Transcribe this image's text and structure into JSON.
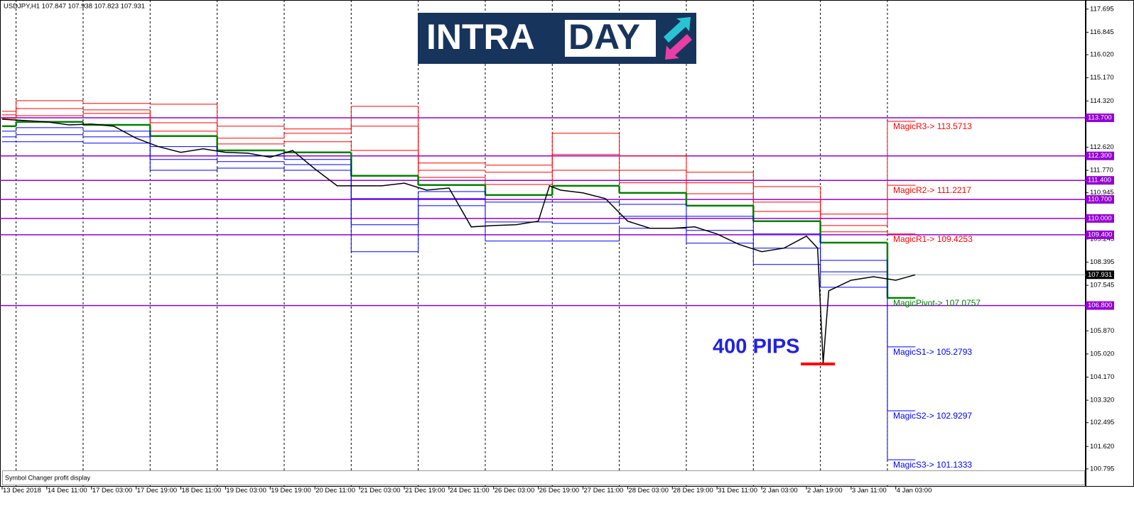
{
  "chart_data": {
    "type": "line",
    "title": "USDJPY,H1  107.847 107.938 107.823 107.931",
    "xlim": [
      -0.76,
      388
    ],
    "ylim": [
      100.14,
      118.03
    ],
    "xticks": [
      {
        "value": 0,
        "label": "13 Dec 2018"
      },
      {
        "value": 16,
        "label": "14 Dec 11:00"
      },
      {
        "value": 32,
        "label": "17 Dec 03:00"
      },
      {
        "value": 48,
        "label": "17 Dec 19:00"
      },
      {
        "value": 64,
        "label": "18 Dec 11:00"
      },
      {
        "value": 80,
        "label": "19 Dec 03:00"
      },
      {
        "value": 96,
        "label": "19 Dec 19:00"
      },
      {
        "value": 112,
        "label": "20 Dec 11:00"
      },
      {
        "value": 128,
        "label": "21 Dec 03:00"
      },
      {
        "value": 144,
        "label": "21 Dec 19:00"
      },
      {
        "value": 160,
        "label": "24 Dec 11:00"
      },
      {
        "value": 176,
        "label": "26 Dec 03:00"
      },
      {
        "value": 192,
        "label": "26 Dec 19:00"
      },
      {
        "value": 208,
        "label": "27 Dec 11:00"
      },
      {
        "value": 224,
        "label": "28 Dec 03:00"
      },
      {
        "value": 240,
        "label": "28 Dec 19:00"
      },
      {
        "value": 256,
        "label": "31 Dec 11:00"
      },
      {
        "value": 272,
        "label": "2 Jan 03:00"
      },
      {
        "value": 288,
        "label": "2 Jan 19:00"
      },
      {
        "value": 304,
        "label": "3 Jan 11:00"
      },
      {
        "value": 320,
        "label": "4 Jan 03:00"
      }
    ],
    "yticks": [
      117.695,
      116.845,
      {
        "value": 116.02,
        "label": "116.020"
      },
      {
        "value": 115.17,
        "label": "115.170"
      },
      {
        "value": 114.32,
        "label": "114.320"
      },
      {
        "value": 112.62,
        "label": "112.620"
      },
      {
        "value": 111.77,
        "label": "111.770"
      },
      110.945,
      109.245,
      108.395,
      107.545,
      {
        "value": 105.87,
        "label": "105.870"
      },
      {
        "value": 105.02,
        "label": "105.020"
      },
      {
        "value": 104.17,
        "label": "104.170"
      },
      {
        "value": 103.32,
        "label": "103.320"
      },
      102.495,
      {
        "value": 101.62,
        "label": "101.620"
      },
      100.795
    ],
    "series": [
      {
        "color": "#000000",
        "x": [
          0,
          8,
          16,
          24,
          32,
          40,
          48,
          56,
          64,
          72,
          80,
          88,
          96,
          104,
          112,
          120,
          128,
          136,
          144,
          152,
          160,
          168,
          176,
          184,
          192,
          196,
          200,
          208,
          216,
          224,
          232,
          240,
          248,
          256,
          264,
          272,
          280,
          288,
          292,
          294,
          296,
          304,
          312,
          320,
          327
        ],
        "values": [
          113.65,
          113.6,
          113.55,
          113.44,
          113.47,
          113.39,
          112.95,
          112.64,
          112.43,
          112.56,
          112.43,
          112.4,
          112.25,
          112.5,
          111.82,
          111.2,
          111.2,
          111.2,
          111.3,
          111.04,
          111.12,
          109.69,
          109.74,
          109.77,
          109.9,
          111.2,
          111.04,
          110.94,
          110.73,
          109.9,
          109.64,
          109.64,
          109.69,
          109.43,
          109.04,
          108.78,
          108.91,
          109.35,
          108.91,
          104.68,
          107.34,
          107.73,
          107.86,
          107.73,
          107.931
        ]
      }
    ],
    "step_x": [
      0,
      5,
      29,
      53,
      77,
      101,
      125,
      149,
      173,
      197,
      221,
      245,
      269,
      293,
      317,
      327
    ],
    "pivot_series": [
      {
        "color": "#ff0000",
        "values": [
          113.94,
          114.33,
          114.23,
          114.2,
          113.39,
          113.29,
          114.12,
          112.04,
          111.96,
          113.13,
          112.3,
          111.7,
          111.17,
          110.16,
          113.57
        ]
      },
      {
        "color": "#ff0000",
        "values": [
          113.81,
          114.04,
          113.99,
          113.52,
          112.95,
          113.13,
          113.39,
          111.77,
          111.7,
          112.35,
          111.77,
          111.31,
          110.6,
          109.74,
          111.22
        ]
      },
      {
        "color": "#ff0000",
        "values": [
          113.68,
          113.78,
          113.86,
          113.21,
          112.74,
          112.82,
          112.5,
          111.51,
          111.25,
          111.77,
          111.31,
          110.91,
          110.26,
          109.51,
          109.43
        ]
      },
      {
        "color": "#008000",
        "values": [
          113.39,
          113.55,
          113.44,
          113.03,
          112.5,
          112.43,
          111.57,
          111.23,
          110.86,
          111.2,
          110.94,
          110.47,
          109.9,
          109.11,
          107.08
        ]
      },
      {
        "color": "#0000ff",
        "values": [
          113.21,
          113.34,
          113.21,
          112.64,
          112.3,
          112.17,
          110.73,
          110.99,
          110.6,
          110.6,
          110.52,
          110.08,
          109.43,
          108.46,
          105.28
        ]
      },
      {
        "color": "#0000ff",
        "values": [
          113.0,
          113.08,
          113.0,
          112.17,
          112.09,
          111.98,
          109.77,
          110.73,
          109.87,
          109.82,
          110.08,
          109.56,
          108.91,
          108.04,
          102.93
        ]
      },
      {
        "color": "#0000ff",
        "values": [
          112.82,
          112.82,
          112.77,
          111.77,
          111.85,
          111.77,
          108.78,
          110.47,
          109.17,
          109.17,
          109.64,
          109.09,
          108.31,
          107.47,
          101.13
        ]
      }
    ],
    "levels": {
      "color": "#9400d3",
      "values": [
        113.7,
        112.3,
        111.4,
        110.7,
        110.0,
        109.4,
        106.8
      ],
      "value_labels": [
        "113.700",
        "112.300",
        "111.400",
        "110.700",
        "110.000",
        "109.400",
        "106.800"
      ]
    },
    "current_price": 107.931,
    "level_labels": [
      {
        "value": 113.5713,
        "label": "MagicR3-> 113.5713",
        "color": "#ff0000"
      },
      {
        "value": 111.2217,
        "label": "MagicR2-> 111.2217",
        "color": "#ff0000"
      },
      {
        "value": 109.4253,
        "label": "MagicR1-> 109.4253",
        "color": "#ff0000"
      },
      {
        "value": 107.0757,
        "label": "MagicPivot-> 107.0757",
        "color": "#008000"
      },
      {
        "value": 105.2793,
        "label": "MagicS1-> 105.2793",
        "color": "#0000ff"
      },
      {
        "value": 102.9297,
        "label": "MagicS2-> 102.9297",
        "color": "#0000ff"
      },
      {
        "value": 101.1333,
        "label": "MagicS3-> 101.1333",
        "color": "#0000ff"
      }
    ],
    "logo": [
      "INTRA",
      "DAY"
    ],
    "pips_label": "400 PIPS",
    "panel_label": "Symbol Changer profit display"
  }
}
